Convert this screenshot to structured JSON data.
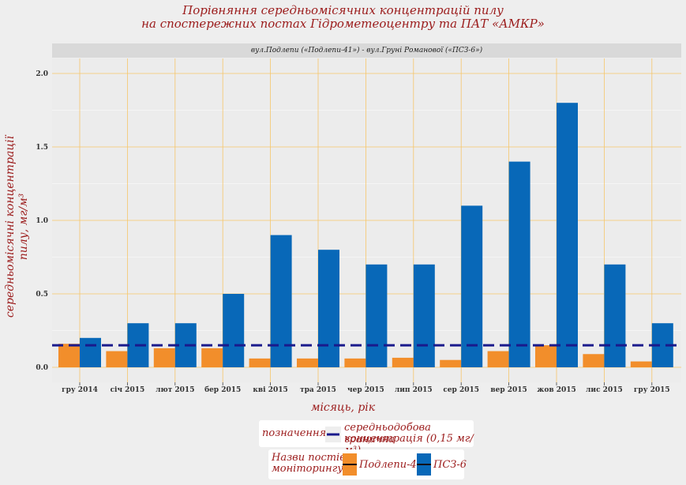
{
  "title_line1": "Порівняння середньомісячних концентрацій пилу",
  "title_line2": "на спостережних постах  Гідрометеоцентру та ПАТ «АМКР»",
  "strip_label": "вул.Подлепи («Подлепи-41») - вул.Груні Романової («ПСЗ-6»)",
  "legend_threshold": {
    "title": "позначення:",
    "label_line1": "середньодобова гранична",
    "label_line2": "концентрація (0,15 мг/м³)"
  },
  "legend_series": {
    "title_line1": "Назви постів",
    "title_line2": "моніторингу:"
  },
  "chart_data": {
    "type": "bar",
    "xlabel": "місяць, рік",
    "ylabel_line1": "середньомісячні концентрації",
    "ylabel_line2": "пилу, мг/м³",
    "ylim": [
      0,
      2.0
    ],
    "y_ticks": [
      "0.0",
      "0.5",
      "1.0",
      "1.5",
      "2.0"
    ],
    "grid": true,
    "legend_position": "bottom",
    "categories": [
      "гру 2014",
      "січ 2015",
      "лют 2015",
      "бер 2015",
      "кві 2015",
      "тра 2015",
      "чер 2015",
      "лип 2015",
      "сер 2015",
      "вер 2015",
      "жов 2015",
      "лис 2015",
      "гру 2015"
    ],
    "series": [
      {
        "name": "Подлепи-41",
        "color": "#f28e2b",
        "values": [
          0.16,
          0.11,
          0.13,
          0.13,
          0.06,
          0.06,
          0.06,
          0.065,
          0.05,
          0.11,
          0.15,
          0.09,
          0.04
        ]
      },
      {
        "name": "ПСЗ-6",
        "color": "#0868b8",
        "values": [
          0.2,
          0.3,
          0.3,
          0.5,
          0.9,
          0.8,
          0.7,
          0.7,
          1.1,
          1.4,
          1.8,
          0.7,
          0.3
        ]
      }
    ],
    "threshold": {
      "value": 0.15,
      "color": "#1a1a8c"
    }
  }
}
